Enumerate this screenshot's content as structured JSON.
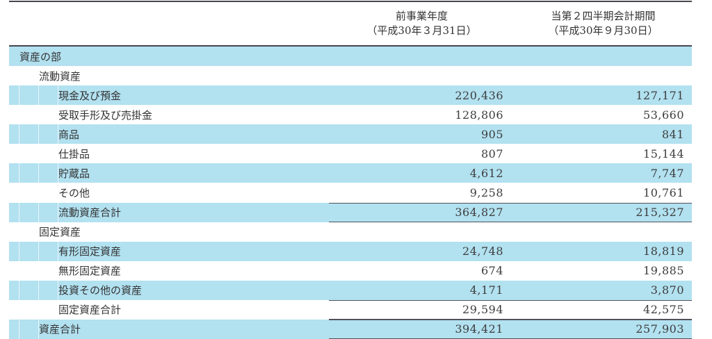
{
  "table": {
    "header": {
      "col1_line1": "前事業年度",
      "col1_line2": "（平成30年３月31日）",
      "col2_line1": "当第２四半期会計期間",
      "col2_line2": "（平成30年９月30日）"
    },
    "rows": [
      {
        "label": "資産の部",
        "indent": 0,
        "highlight": true,
        "total": false,
        "v1": "",
        "v2": ""
      },
      {
        "label": "流動資産",
        "indent": 1,
        "highlight": false,
        "total": false,
        "v1": "",
        "v2": ""
      },
      {
        "label": "現金及び預金",
        "indent": 2,
        "highlight": true,
        "total": false,
        "v1": "220,436",
        "v2": "127,171"
      },
      {
        "label": "受取手形及び売掛金",
        "indent": 2,
        "highlight": false,
        "total": false,
        "v1": "128,806",
        "v2": "53,660"
      },
      {
        "label": "商品",
        "indent": 2,
        "highlight": true,
        "total": false,
        "v1": "905",
        "v2": "841"
      },
      {
        "label": "仕掛品",
        "indent": 2,
        "highlight": false,
        "total": false,
        "v1": "807",
        "v2": "15,144"
      },
      {
        "label": "貯蔵品",
        "indent": 2,
        "highlight": true,
        "total": false,
        "v1": "4,612",
        "v2": "7,747"
      },
      {
        "label": "その他",
        "indent": 2,
        "highlight": false,
        "total": false,
        "v1": "9,258",
        "v2": "10,761"
      },
      {
        "label": "流動資産合計",
        "indent": 2,
        "highlight": true,
        "total": true,
        "v1": "364,827",
        "v2": "215,327"
      },
      {
        "label": "固定資産",
        "indent": 1,
        "highlight": false,
        "total": false,
        "v1": "",
        "v2": ""
      },
      {
        "label": "有形固定資産",
        "indent": 2,
        "highlight": true,
        "total": false,
        "v1": "24,748",
        "v2": "18,819"
      },
      {
        "label": "無形固定資産",
        "indent": 2,
        "highlight": false,
        "total": false,
        "v1": "674",
        "v2": "19,885"
      },
      {
        "label": "投資その他の資産",
        "indent": 2,
        "highlight": true,
        "total": false,
        "v1": "4,171",
        "v2": "3,870"
      },
      {
        "label": "固定資産合計",
        "indent": 2,
        "highlight": false,
        "total": true,
        "v1": "29,594",
        "v2": "42,575"
      },
      {
        "label": "資産合計",
        "indent": 1,
        "highlight": true,
        "total": true,
        "v1": "394,421",
        "v2": "257,903"
      }
    ]
  },
  "colors": {
    "row_highlight": "#B2E1F0",
    "rule_line": "#47474f",
    "text": "#333333"
  }
}
